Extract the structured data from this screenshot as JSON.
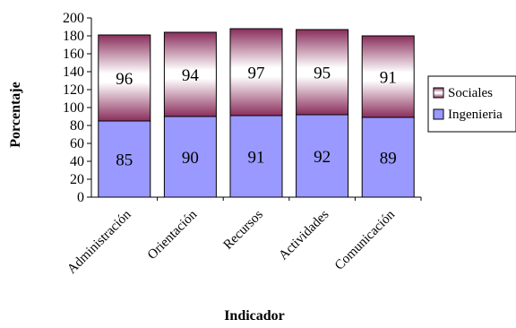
{
  "chart_data": {
    "type": "bar",
    "stacked": true,
    "categories": [
      "Administración",
      "Orientación",
      "Recursos",
      "Actividades",
      "Comunicación"
    ],
    "series": [
      {
        "name": "Ingenieria",
        "values": [
          85,
          90,
          91,
          92,
          89
        ],
        "color": "#9999ff"
      },
      {
        "name": "Sociales",
        "values": [
          96,
          94,
          97,
          95,
          91
        ],
        "color": "#993366",
        "gradient": "maroon-to-white-to-maroon"
      }
    ],
    "title": "",
    "xlabel": "Indicador",
    "ylabel": "Porcentaje",
    "ylim": [
      0,
      200
    ],
    "yticks": [
      0,
      20,
      40,
      60,
      80,
      100,
      120,
      140,
      160,
      180,
      200
    ],
    "grid": false,
    "legend": "right"
  }
}
